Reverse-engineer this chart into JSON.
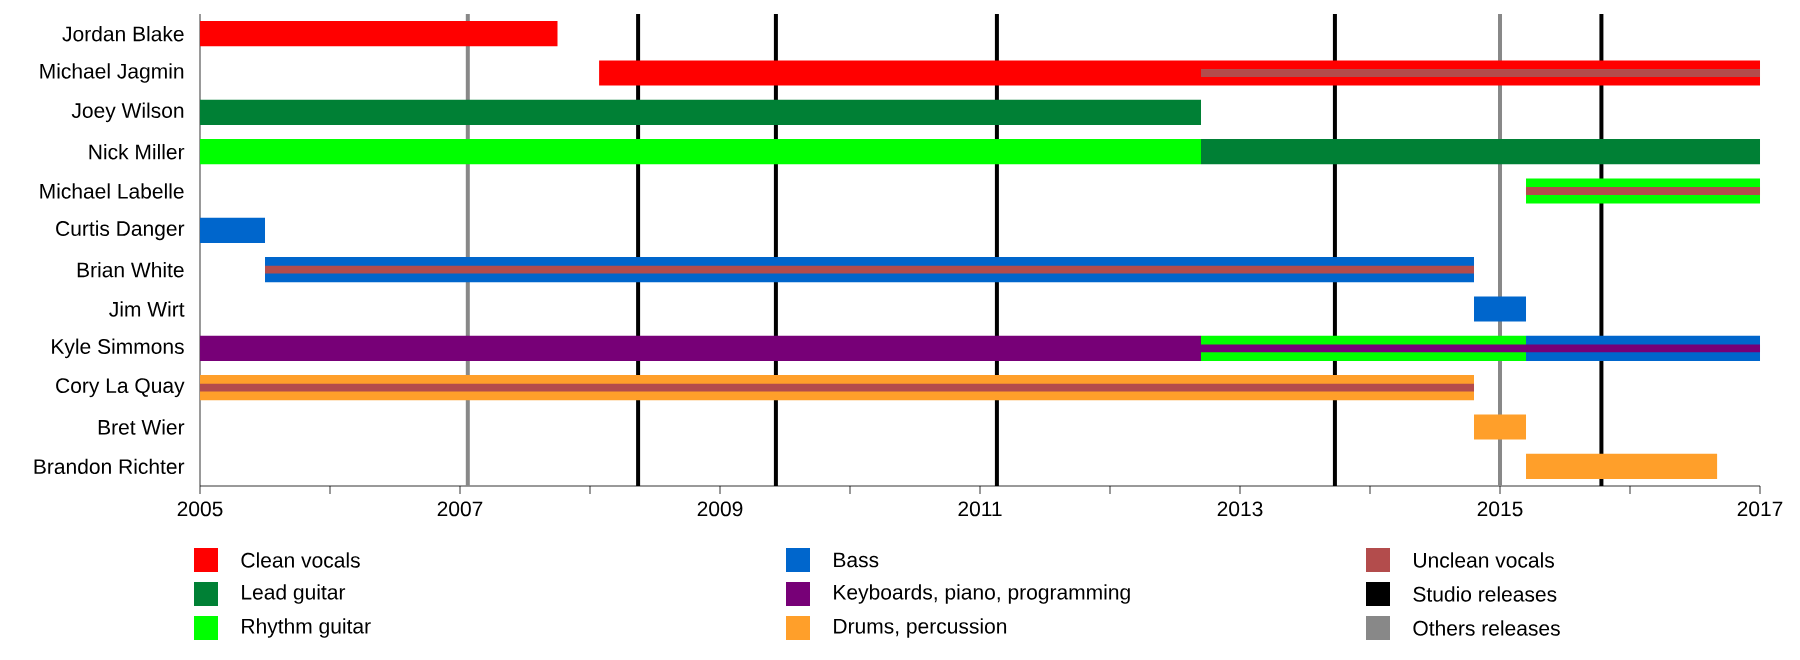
{
  "chart_data": {
    "type": "bar",
    "orientation": "horizontal",
    "categories": [
      "Jordan Blake",
      "Michael Jagmin",
      "Joey Wilson",
      "Nick Miller",
      "Michael Labelle",
      "Curtis Danger",
      "Brian White",
      "Jim Wirt",
      "Kyle Simmons",
      "Cory La Quay",
      "Bret Wier",
      "Brandon Richter"
    ],
    "series": [
      {
        "name": "Clean vocals",
        "color": "#ff0000",
        "base": [
          2005,
          2008.07,
          null,
          null,
          null,
          null,
          null,
          null,
          null,
          null,
          null,
          null
        ],
        "values": [
          2.75,
          8.93,
          null,
          null,
          null,
          null,
          null,
          null,
          null,
          null,
          null,
          null
        ]
      },
      {
        "name": "Lead guitar",
        "color": "#008035",
        "base": [
          null,
          null,
          2005,
          2012.7,
          null,
          null,
          null,
          null,
          null,
          null,
          null,
          null
        ],
        "values": [
          null,
          null,
          7.7,
          4.3,
          null,
          null,
          null,
          null,
          null,
          null,
          null,
          null
        ]
      },
      {
        "name": "Rhythm guitar",
        "color": "#00ff00",
        "base": [
          null,
          null,
          null,
          2005,
          2015.2,
          null,
          null,
          null,
          2012.7,
          null,
          null,
          null
        ],
        "values": [
          null,
          null,
          null,
          7.7,
          1.8,
          null,
          null,
          null,
          2.5,
          null,
          null,
          null
        ]
      },
      {
        "name": "Bass",
        "color": "#0066cc",
        "base": [
          null,
          null,
          null,
          null,
          null,
          2005,
          2005.5,
          2014.8,
          2015.2,
          null,
          null,
          null
        ],
        "values": [
          null,
          null,
          null,
          null,
          null,
          0.5,
          9.3,
          0.4,
          1.8,
          null,
          null,
          null
        ]
      },
      {
        "name": "Keyboards, piano, programming",
        "color": "#770077",
        "base": [
          null,
          null,
          null,
          null,
          null,
          null,
          null,
          null,
          2005,
          null,
          null,
          null
        ],
        "values": [
          null,
          null,
          null,
          null,
          null,
          null,
          null,
          null,
          7.7,
          null,
          null,
          null
        ]
      },
      {
        "name": "Drums, percussion",
        "color": "#ff9f2a",
        "base": [
          null,
          null,
          null,
          null,
          null,
          null,
          null,
          null,
          null,
          2005,
          2014.8,
          2015.2
        ],
        "values": [
          null,
          null,
          null,
          null,
          null,
          null,
          null,
          null,
          null,
          9.8,
          0.4,
          1.47
        ]
      },
      {
        "name": "Unclean vocals",
        "color": "#b34c4c",
        "base": [
          null,
          2012.7,
          null,
          null,
          2015.2,
          null,
          2005.5,
          null,
          null,
          2005,
          null,
          null
        ],
        "values": [
          null,
          4.3,
          null,
          null,
          1.8,
          null,
          9.3,
          null,
          null,
          9.8,
          null,
          null
        ]
      },
      {
        "color": "#770077",
        "base": [
          null,
          null,
          null,
          null,
          null,
          null,
          null,
          null,
          2012.7,
          null,
          null,
          null
        ],
        "values": [
          null,
          null,
          null,
          null,
          null,
          null,
          null,
          null,
          4.3,
          null,
          null,
          null
        ]
      }
    ],
    "xlim": [
      2005,
      2017
    ],
    "xticks": [
      2005,
      {
        "value": 2006,
        "label": null
      },
      2007,
      {
        "value": 2008,
        "label": null
      },
      2009,
      {
        "value": 2010,
        "label": null
      },
      2011,
      {
        "value": 2012,
        "label": null
      },
      2013,
      {
        "value": 2014,
        "label": null
      },
      2015,
      {
        "value": 2016,
        "label": null
      },
      2017
    ],
    "ref_lines": [
      {
        "axis": "x",
        "value": 2008.37,
        "label": "Studio releases",
        "color": "#000000"
      },
      {
        "axis": "x",
        "value": 2009.43,
        "color": "#000000"
      },
      {
        "axis": "x",
        "value": 2011.13,
        "color": "#000000"
      },
      {
        "axis": "x",
        "value": 2013.73,
        "color": "#000000"
      },
      {
        "axis": "x",
        "value": 2015.78,
        "color": "#000000"
      },
      {
        "axis": "x",
        "value": 2007.06,
        "label": "Others releases",
        "color": "#888888"
      },
      {
        "axis": "x",
        "value": 2015.0,
        "color": "#888888"
      }
    ],
    "legend": "bottom"
  }
}
